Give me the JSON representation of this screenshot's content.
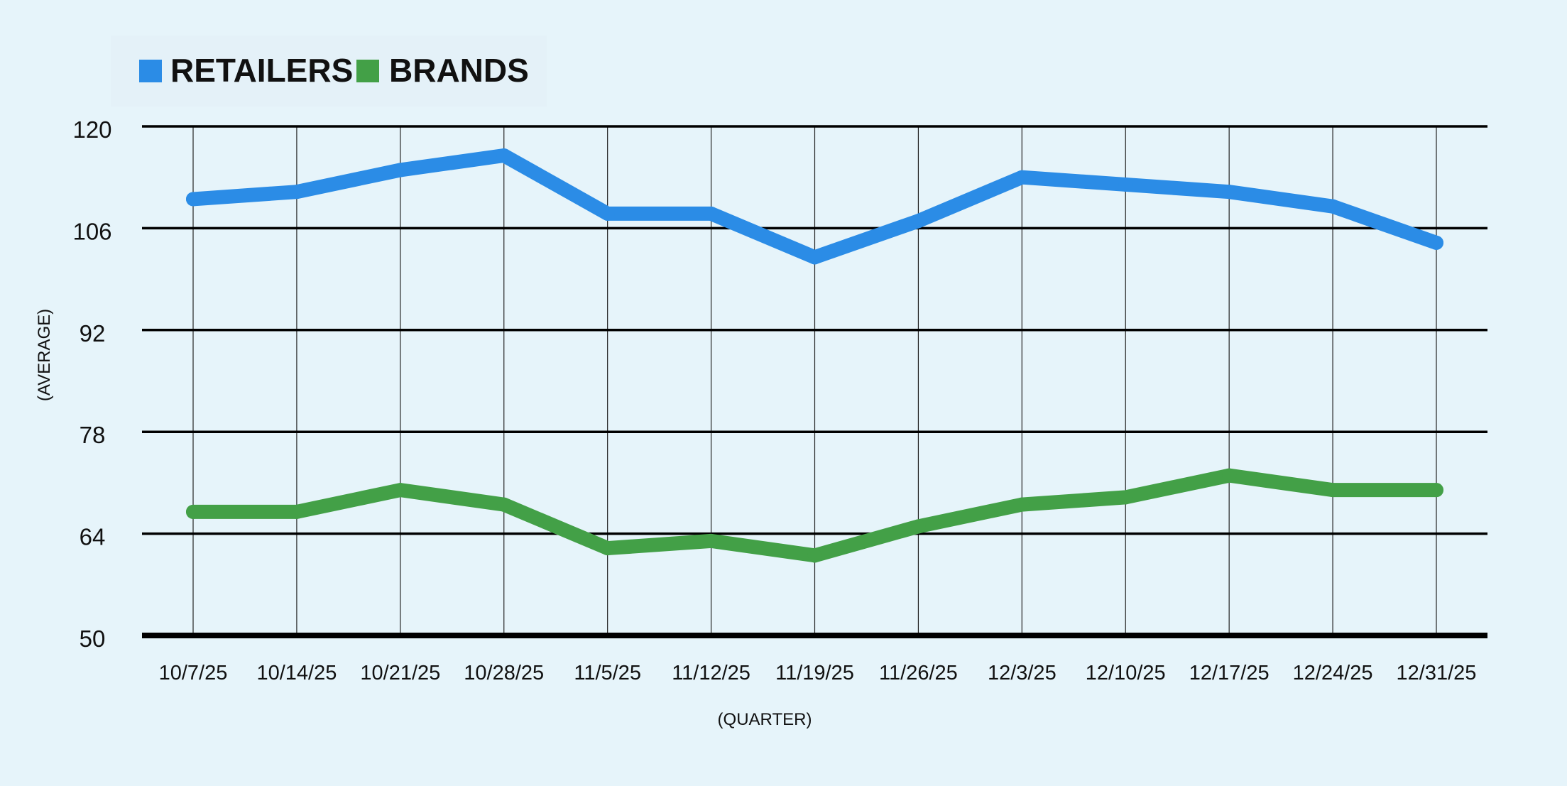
{
  "chart_data": {
    "type": "line",
    "categories": [
      "10/7/25",
      "10/14/25",
      "10/21/25",
      "10/28/25",
      "11/5/25",
      "11/12/25",
      "11/19/25",
      "11/26/25",
      "12/3/25",
      "12/10/25",
      "12/17/25",
      "12/24/25",
      "12/31/25"
    ],
    "series": [
      {
        "name": "RETAILERS",
        "color": "#2b8ce6",
        "values": [
          110,
          111,
          114,
          116,
          108,
          108,
          102,
          107,
          113,
          112,
          111,
          109,
          104
        ]
      },
      {
        "name": "BRANDS",
        "color": "#43a047",
        "values": [
          67,
          67,
          70,
          68,
          62,
          63,
          61,
          65,
          68,
          69,
          72,
          70,
          70
        ]
      }
    ],
    "xlabel": "(QUARTER)",
    "ylabel": "(AVERAGE)",
    "ylim": [
      50,
      120
    ],
    "yticks": [
      50,
      64,
      78,
      92,
      106,
      120
    ],
    "grid": true,
    "legend": "top-left"
  }
}
